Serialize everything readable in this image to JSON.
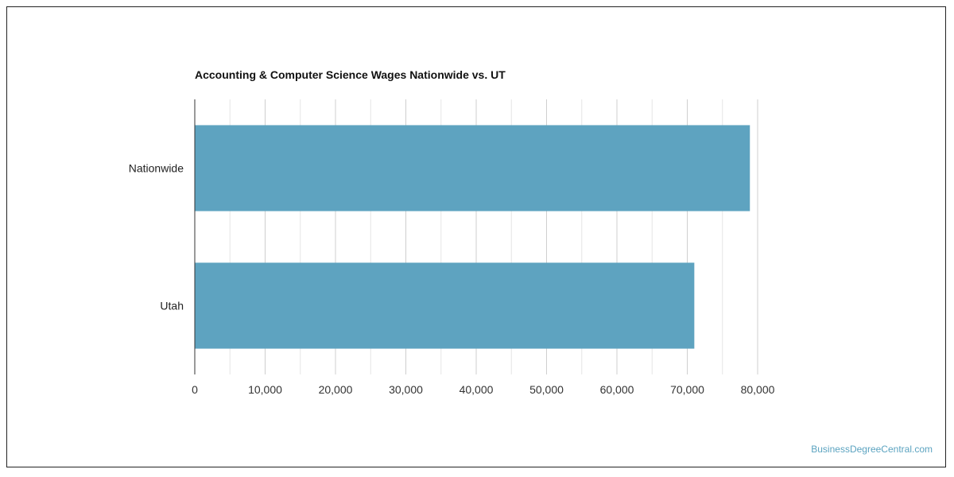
{
  "colors": {
    "bar": "#5ea3c0",
    "grid_major": "#cfcfcf",
    "grid_minor": "#e6e6e6",
    "axis": "#333333",
    "watermark": "#5ba3c0"
  },
  "watermark": "BusinessDegreeCentral.com",
  "chart_data": {
    "type": "bar",
    "orientation": "horizontal",
    "title": "Accounting & Computer Science Wages Nationwide vs. UT",
    "xlabel": "",
    "ylabel": "",
    "categories": [
      "Nationwide",
      "Utah"
    ],
    "values": [
      78900,
      71000
    ],
    "xlim": [
      0,
      80000
    ],
    "ticks": [
      0,
      10000,
      20000,
      30000,
      40000,
      50000,
      60000,
      70000,
      80000
    ],
    "tick_labels": [
      "0",
      "10,000",
      "20,000",
      "30,000",
      "40,000",
      "50,000",
      "60,000",
      "70,000",
      "80,000"
    ],
    "grid": true,
    "legend": "none"
  }
}
